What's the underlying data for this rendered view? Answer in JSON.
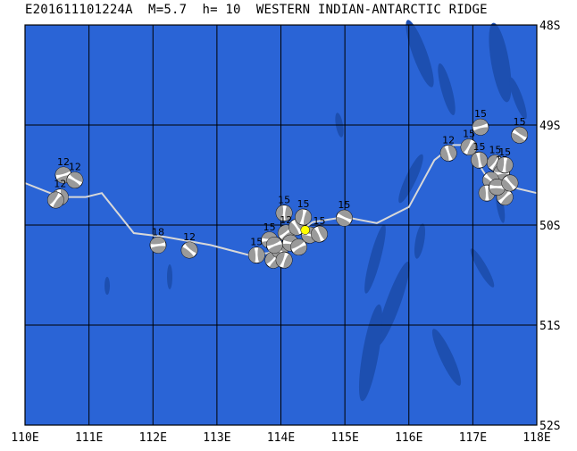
{
  "header": {
    "title": "E201611101224A  M=5.7  h= 10  WESTERN INDIAN-ANTARCTIC RIDGE"
  },
  "map": {
    "lon_range": [
      110,
      118
    ],
    "lat_range": [
      -48,
      -52
    ],
    "lon_ticks": [
      "110E",
      "111E",
      "112E",
      "113E",
      "114E",
      "115E",
      "116E",
      "117E",
      "118E"
    ],
    "lat_ticks": [
      "48S",
      "49S",
      "50S",
      "51S",
      "52S"
    ],
    "ocean_color": "#2a64d6",
    "deep_color": "#1d4fb0",
    "grid_color": "#000000",
    "ridge_color": "#d8d8d8",
    "main_event": {
      "lon": 114.38,
      "lat": -50.05,
      "color": "#ffff00"
    },
    "ridge": [
      [
        110.0,
        -49.58
      ],
      [
        110.55,
        -49.72
      ],
      [
        110.95,
        -49.72
      ],
      [
        111.2,
        -49.68
      ],
      [
        111.7,
        -50.08
      ],
      [
        112.2,
        -50.12
      ],
      [
        112.9,
        -50.2
      ],
      [
        113.5,
        -50.3
      ],
      [
        113.8,
        -50.28
      ],
      [
        114.1,
        -50.15
      ],
      [
        114.5,
        -49.97
      ],
      [
        115.0,
        -49.92
      ],
      [
        115.5,
        -49.98
      ],
      [
        116.0,
        -49.82
      ],
      [
        116.4,
        -49.35
      ],
      [
        116.7,
        -49.2
      ],
      [
        116.9,
        -49.2
      ],
      [
        117.2,
        -49.5
      ],
      [
        117.6,
        -49.62
      ],
      [
        118.0,
        -49.68
      ]
    ],
    "mechanisms": [
      {
        "lon": 110.6,
        "lat": -49.5,
        "label": "12"
      },
      {
        "lon": 110.78,
        "lat": -49.55,
        "label": "12"
      },
      {
        "lon": 110.55,
        "lat": -49.72,
        "label": "12"
      },
      {
        "lon": 110.48,
        "lat": -49.75,
        "label": ""
      },
      {
        "lon": 112.08,
        "lat": -50.2,
        "label": "18"
      },
      {
        "lon": 112.57,
        "lat": -50.25,
        "label": "12"
      },
      {
        "lon": 113.62,
        "lat": -50.3,
        "label": "15"
      },
      {
        "lon": 113.88,
        "lat": -50.35,
        "label": ""
      },
      {
        "lon": 113.82,
        "lat": -50.15,
        "label": "15"
      },
      {
        "lon": 113.98,
        "lat": -50.25,
        "label": ""
      },
      {
        "lon": 114.05,
        "lat": -49.88,
        "label": "15"
      },
      {
        "lon": 114.08,
        "lat": -50.08,
        "label": "12"
      },
      {
        "lon": 114.15,
        "lat": -50.18,
        "label": ""
      },
      {
        "lon": 114.25,
        "lat": -50.02,
        "label": ""
      },
      {
        "lon": 114.35,
        "lat": -49.92,
        "label": "15"
      },
      {
        "lon": 114.28,
        "lat": -50.22,
        "label": ""
      },
      {
        "lon": 114.45,
        "lat": -50.1,
        "label": ""
      },
      {
        "lon": 114.6,
        "lat": -50.09,
        "label": "15"
      },
      {
        "lon": 114.05,
        "lat": -50.35,
        "label": ""
      },
      {
        "lon": 113.9,
        "lat": -50.2,
        "label": ""
      },
      {
        "lon": 114.99,
        "lat": -49.93,
        "label": "15"
      },
      {
        "lon": 116.62,
        "lat": -49.28,
        "label": "12"
      },
      {
        "lon": 116.94,
        "lat": -49.22,
        "label": "15"
      },
      {
        "lon": 117.12,
        "lat": -49.02,
        "label": "15"
      },
      {
        "lon": 117.73,
        "lat": -49.1,
        "label": "15"
      },
      {
        "lon": 117.1,
        "lat": -49.35,
        "label": "15"
      },
      {
        "lon": 117.35,
        "lat": -49.38,
        "label": "15"
      },
      {
        "lon": 117.45,
        "lat": -49.48,
        "label": "15"
      },
      {
        "lon": 117.28,
        "lat": -49.55,
        "label": ""
      },
      {
        "lon": 117.22,
        "lat": -49.68,
        "label": ""
      },
      {
        "lon": 117.5,
        "lat": -49.72,
        "label": ""
      },
      {
        "lon": 117.38,
        "lat": -49.62,
        "label": ""
      },
      {
        "lon": 117.58,
        "lat": -49.58,
        "label": ""
      },
      {
        "lon": 117.5,
        "lat": -49.4,
        "label": "15"
      }
    ]
  }
}
